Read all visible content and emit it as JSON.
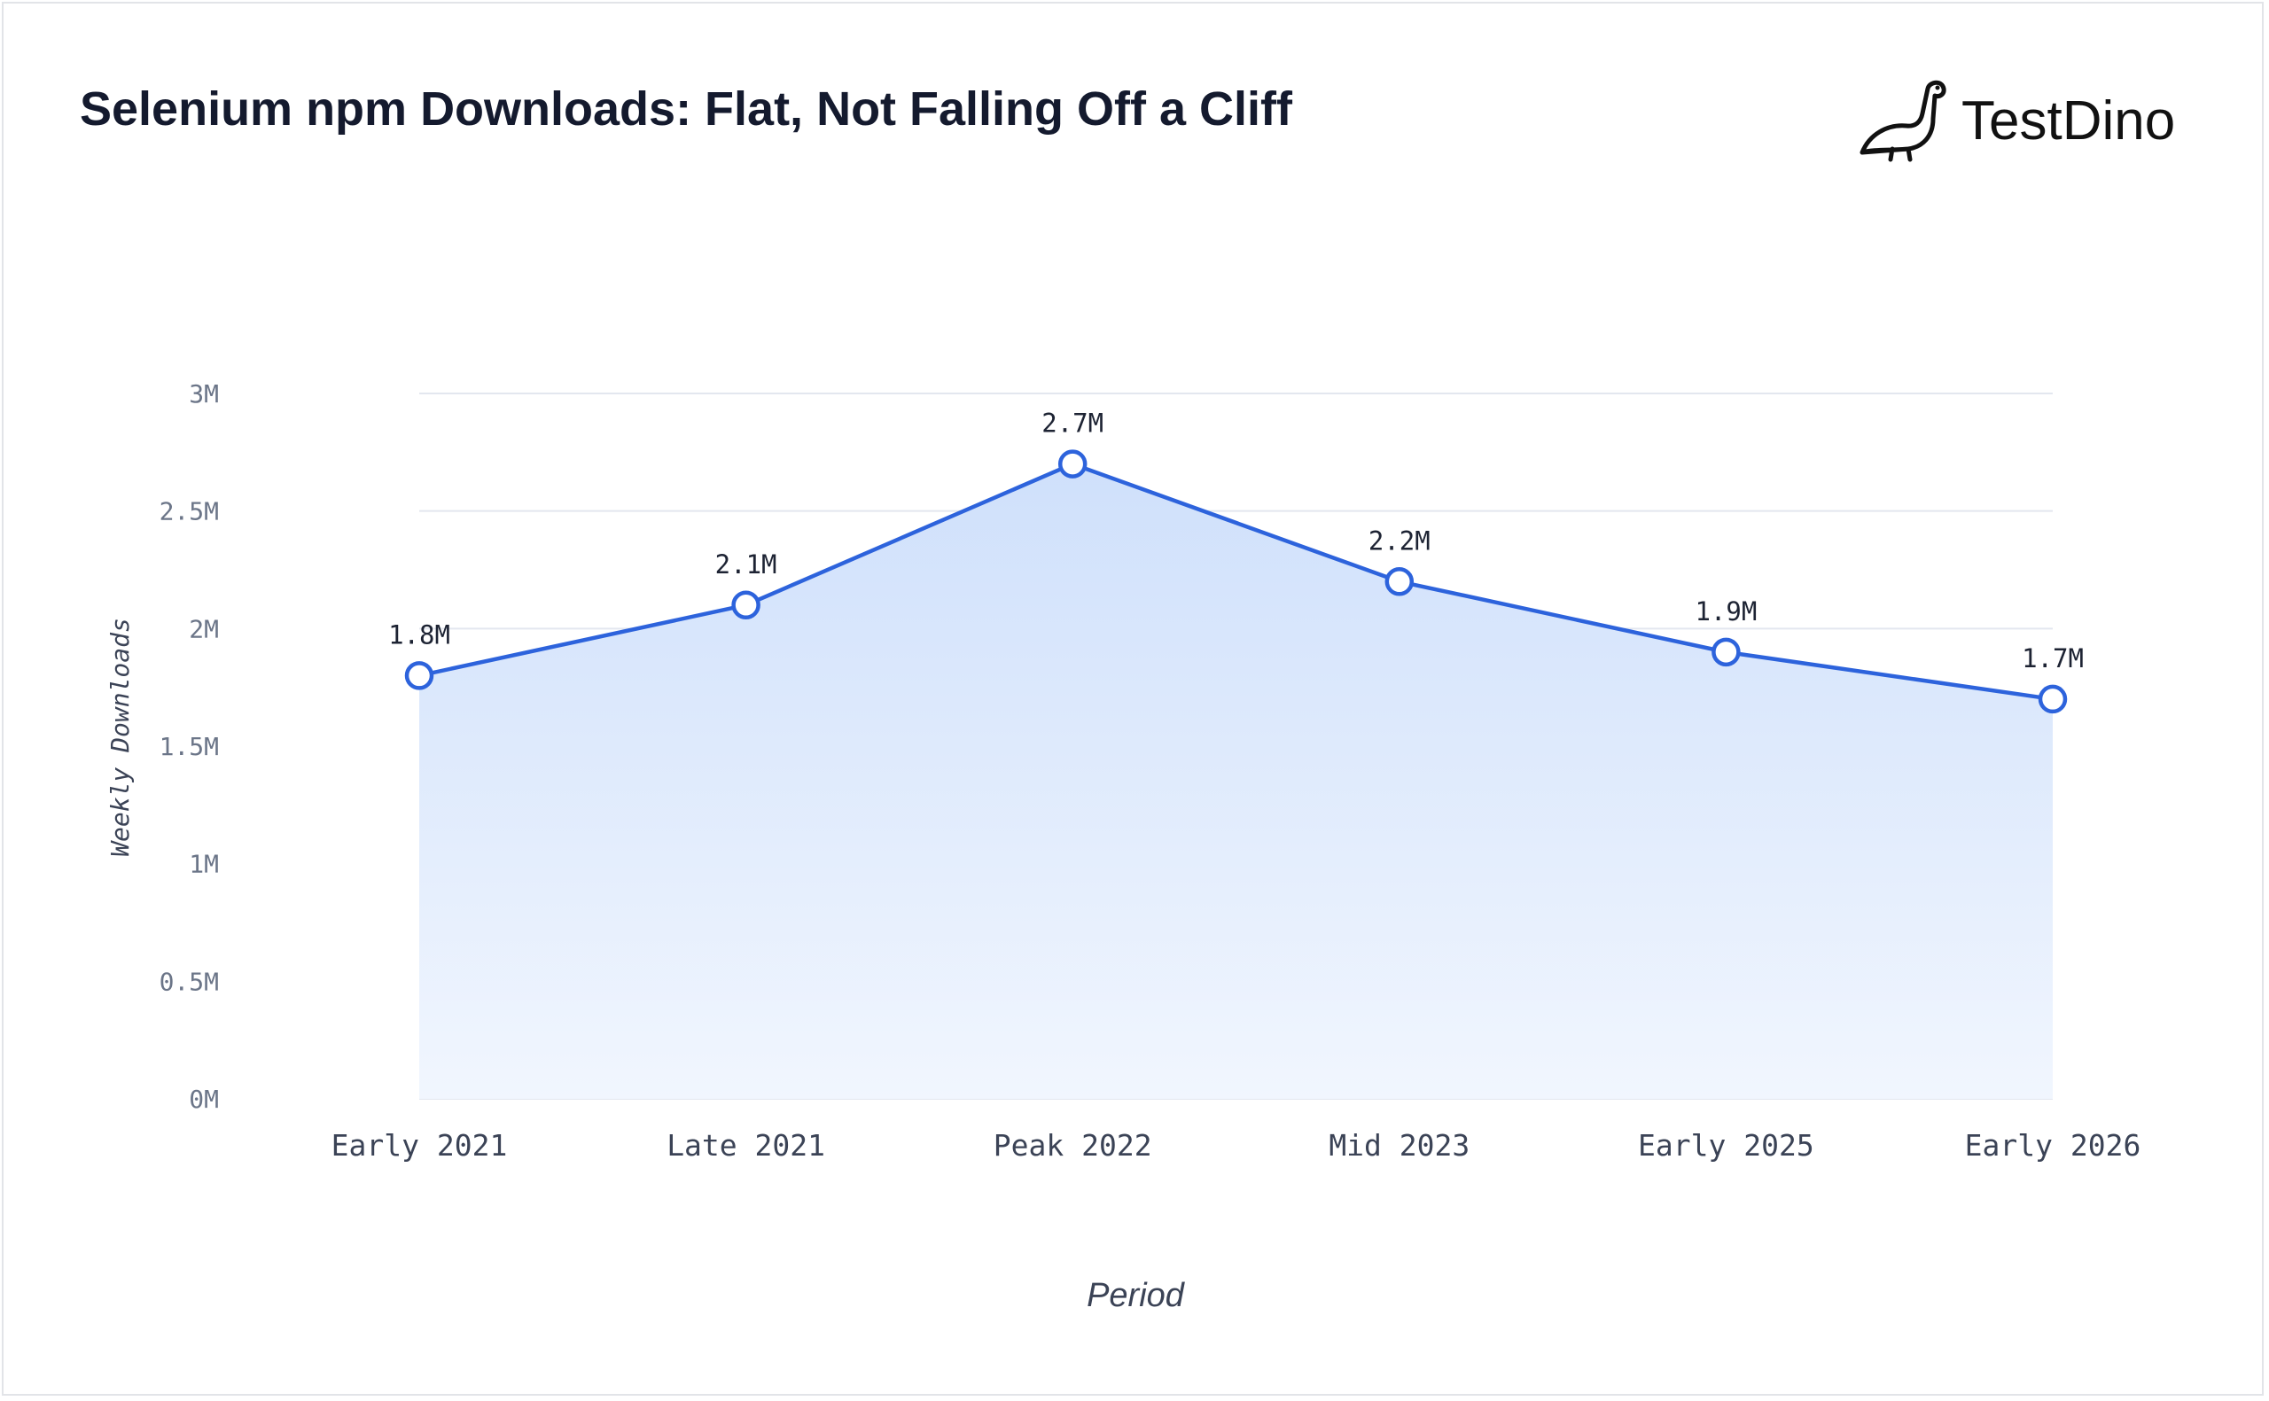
{
  "header": {
    "title": "Selenium npm Downloads: Flat, Not Falling Off a Cliff",
    "brand_name": "TestDino",
    "brand_icon": "dinosaur-icon"
  },
  "colors": {
    "line": "#2d63dc",
    "area_top": "#cfe0fb",
    "area_bottom": "#f1f6fe",
    "grid": "#e3e7ef",
    "title": "#141a2e"
  },
  "chart_data": {
    "type": "area",
    "title": "Selenium npm Downloads: Flat, Not Falling Off a Cliff",
    "xlabel": "Period",
    "ylabel": "Weekly Downloads",
    "categories": [
      "Early 2021",
      "Late 2021",
      "Peak 2022",
      "Mid 2023",
      "Early 2025",
      "Early 2026"
    ],
    "series": [
      {
        "values": [
          1800000,
          2100000,
          2700000,
          2200000,
          1900000,
          1700000
        ],
        "labels": [
          "1.8M",
          "2.1M",
          "2.7M",
          "2.2M",
          "1.9M",
          "1.7M"
        ]
      }
    ],
    "ylim": [
      0,
      3000000
    ],
    "yticks": [
      0,
      500000,
      1000000,
      1500000,
      2000000,
      2500000,
      3000000
    ],
    "ytick_labels": [
      "0M",
      "0.5M",
      "1M",
      "1.5M",
      "2M",
      "2.5M",
      "3M"
    ],
    "grid": true,
    "markers": "hollow-circle",
    "legend": "none"
  }
}
